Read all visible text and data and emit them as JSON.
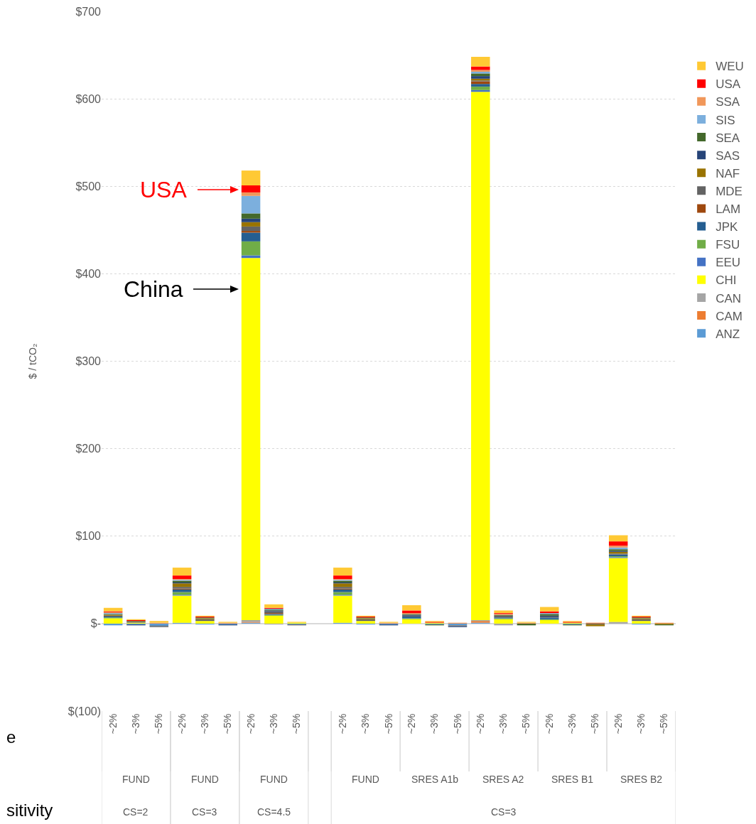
{
  "chart_data": {
    "type": "bar",
    "stacked": true,
    "ylabel": "$ / tCO₂",
    "categories": [
      "~2%",
      "~3%",
      "~5%",
      "~2%",
      "~3%",
      "~5%",
      "~2%",
      "~3%",
      "~5%",
      null,
      "~2%",
      "~3%",
      "~5%",
      "~2%",
      "~3%",
      "~5%",
      "~2%",
      "~3%",
      "~5%",
      "~2%",
      "~3%",
      "~5%",
      "~2%",
      "~3%",
      "~5%"
    ],
    "series": [
      {
        "name": "ANZ",
        "color": "#5b9bd5",
        "values": [
          -2,
          -1,
          -2,
          1,
          -1,
          -1,
          1,
          null,
          -1,
          null,
          1,
          -1,
          -1,
          null,
          -1,
          -2,
          1,
          null,
          null,
          null,
          -1,
          null,
          null,
          -1,
          null
        ]
      },
      {
        "name": "CAM",
        "color": "#ed7d31",
        "values": [
          null,
          null,
          null,
          null,
          null,
          null,
          1,
          null,
          null,
          null,
          null,
          null,
          null,
          null,
          null,
          null,
          2,
          null,
          null,
          null,
          null,
          1,
          null,
          null,
          null
        ]
      },
      {
        "name": "CAN",
        "color": "#a5a5a5",
        "values": [
          null,
          null,
          null,
          null,
          null,
          null,
          2,
          -1,
          null,
          null,
          null,
          null,
          null,
          null,
          null,
          null,
          1,
          -2,
          null,
          null,
          null,
          null,
          2,
          null,
          null
        ]
      },
      {
        "name": "CHI",
        "color": "#ffff00",
        "values": [
          6,
          1,
          null,
          31,
          3,
          null,
          414,
          9,
          1,
          null,
          31,
          3,
          null,
          5,
          1,
          null,
          604,
          5,
          null,
          4,
          1,
          null,
          73,
          3,
          null
        ]
      },
      {
        "name": "EEU",
        "color": "#4472c4",
        "values": [
          null,
          null,
          null,
          1,
          null,
          null,
          3,
          null,
          null,
          null,
          1,
          null,
          null,
          null,
          null,
          null,
          2,
          null,
          null,
          null,
          null,
          null,
          1,
          null,
          null
        ]
      },
      {
        "name": "FSU",
        "color": "#70ad47",
        "values": [
          1,
          null,
          null,
          3,
          null,
          null,
          16,
          1,
          null,
          null,
          3,
          null,
          null,
          1,
          null,
          null,
          4,
          1,
          null,
          1,
          null,
          null,
          1,
          null,
          null
        ]
      },
      {
        "name": "JPK",
        "color": "#255e91",
        "values": [
          1,
          null,
          -1,
          3,
          null,
          null,
          10,
          1,
          null,
          null,
          3,
          null,
          null,
          2,
          null,
          null,
          3,
          1,
          null,
          2,
          null,
          null,
          2,
          null,
          null
        ]
      },
      {
        "name": "LAM",
        "color": "#9e480e",
        "values": [
          null,
          null,
          null,
          1,
          null,
          null,
          2,
          1,
          null,
          null,
          1,
          null,
          null,
          null,
          null,
          null,
          3,
          null,
          null,
          null,
          null,
          null,
          null,
          null,
          null
        ]
      },
      {
        "name": "MDE",
        "color": "#636363",
        "values": [
          1,
          1,
          -1,
          2,
          2,
          null,
          5,
          2,
          -1,
          null,
          2,
          2,
          null,
          1,
          null,
          -1,
          1,
          2,
          null,
          1,
          null,
          -1,
          1,
          2,
          null
        ]
      },
      {
        "name": "NAF",
        "color": "#997300",
        "values": [
          1,
          null,
          null,
          4,
          1,
          null,
          5,
          null,
          null,
          null,
          4,
          1,
          null,
          null,
          null,
          null,
          2,
          null,
          null,
          null,
          null,
          -2,
          2,
          1,
          -1
        ]
      },
      {
        "name": "SAS",
        "color": "#264478",
        "values": [
          null,
          -1,
          null,
          1,
          null,
          -1,
          4,
          1,
          null,
          null,
          1,
          null,
          -1,
          1,
          null,
          -1,
          3,
          null,
          null,
          1,
          null,
          null,
          1,
          null,
          null
        ]
      },
      {
        "name": "SEA",
        "color": "#43682b",
        "values": [
          1,
          1,
          null,
          2,
          1,
          null,
          6,
          1,
          null,
          null,
          2,
          1,
          null,
          1,
          -1,
          null,
          3,
          1,
          -2,
          2,
          -1,
          null,
          2,
          1,
          -1
        ]
      },
      {
        "name": "SIS",
        "color": "#7cafdd",
        "values": [
          1,
          null,
          null,
          1,
          null,
          null,
          20,
          1,
          null,
          null,
          1,
          null,
          null,
          null,
          null,
          null,
          2,
          null,
          null,
          1,
          null,
          null,
          2,
          null,
          null
        ]
      },
      {
        "name": "SSA",
        "color": "#f1975a",
        "values": [
          1,
          null,
          1,
          1,
          null,
          1,
          4,
          null,
          null,
          null,
          1,
          null,
          1,
          1,
          null,
          1,
          2,
          1,
          1,
          null,
          null,
          null,
          2,
          null,
          1
        ]
      },
      {
        "name": "USA",
        "color": "#ff0000",
        "values": [
          1,
          1,
          null,
          4,
          1,
          null,
          8,
          1,
          null,
          null,
          4,
          1,
          null,
          3,
          1,
          null,
          4,
          1,
          null,
          2,
          1,
          null,
          5,
          1,
          null
        ]
      },
      {
        "name": "WEU",
        "color": "#ffc934",
        "values": [
          4,
          1,
          2,
          9,
          1,
          1,
          17,
          4,
          1,
          null,
          9,
          1,
          1,
          6,
          1,
          null,
          11,
          3,
          1,
          5,
          1,
          null,
          7,
          1,
          null
        ]
      }
    ],
    "ylim": [
      -100,
      700
    ],
    "yticks": [
      {
        "value": -100,
        "label": "$(100)"
      },
      {
        "value": 0,
        "label": "$-"
      },
      {
        "value": 100,
        "label": "$100"
      },
      {
        "value": 200,
        "label": "$200"
      },
      {
        "value": 300,
        "label": "$300"
      },
      {
        "value": 400,
        "label": "$400"
      },
      {
        "value": 500,
        "label": "$500"
      },
      {
        "value": 600,
        "label": "$600"
      },
      {
        "value": 700,
        "label": "$700"
      }
    ],
    "grid": "y",
    "legend": "right",
    "annotations": [
      "USA",
      "China",
      "FUND",
      "FUND",
      "FUND",
      "FUND",
      "SRES A1b",
      "SRES A2",
      "SRES B1",
      "SRES B2",
      "CS=2",
      "CS=3",
      "CS=4.5",
      "CS=3",
      "e",
      "sitivity"
    ]
  }
}
